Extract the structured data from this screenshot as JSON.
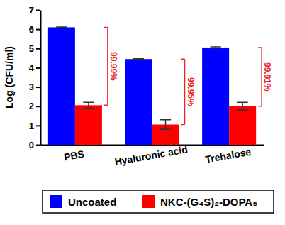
{
  "chart_data": {
    "type": "bar",
    "y_label": "Log (CFU/ml)",
    "categories": [
      "PBS",
      "Hyaluronic acid",
      "Trehalose"
    ],
    "series": [
      {
        "name": "Uncoated",
        "color": "#0000ff",
        "values": [
          6.1,
          4.45,
          5.05
        ],
        "errors": [
          0.02,
          0.02,
          0.03
        ]
      },
      {
        "name": "NKC-(G₄S)₂-DOPA₅",
        "color": "#ff0000",
        "values": [
          2.05,
          1.05,
          2.0
        ],
        "errors": [
          0.15,
          0.25,
          0.2
        ]
      }
    ],
    "annotations": [
      "99.99%",
      "99.95%",
      "99.91%"
    ],
    "ylim": [
      0,
      7
    ],
    "yticks": [
      0,
      1,
      2,
      3,
      4,
      5,
      6,
      7
    ],
    "grid": false,
    "legend": "bottom"
  }
}
